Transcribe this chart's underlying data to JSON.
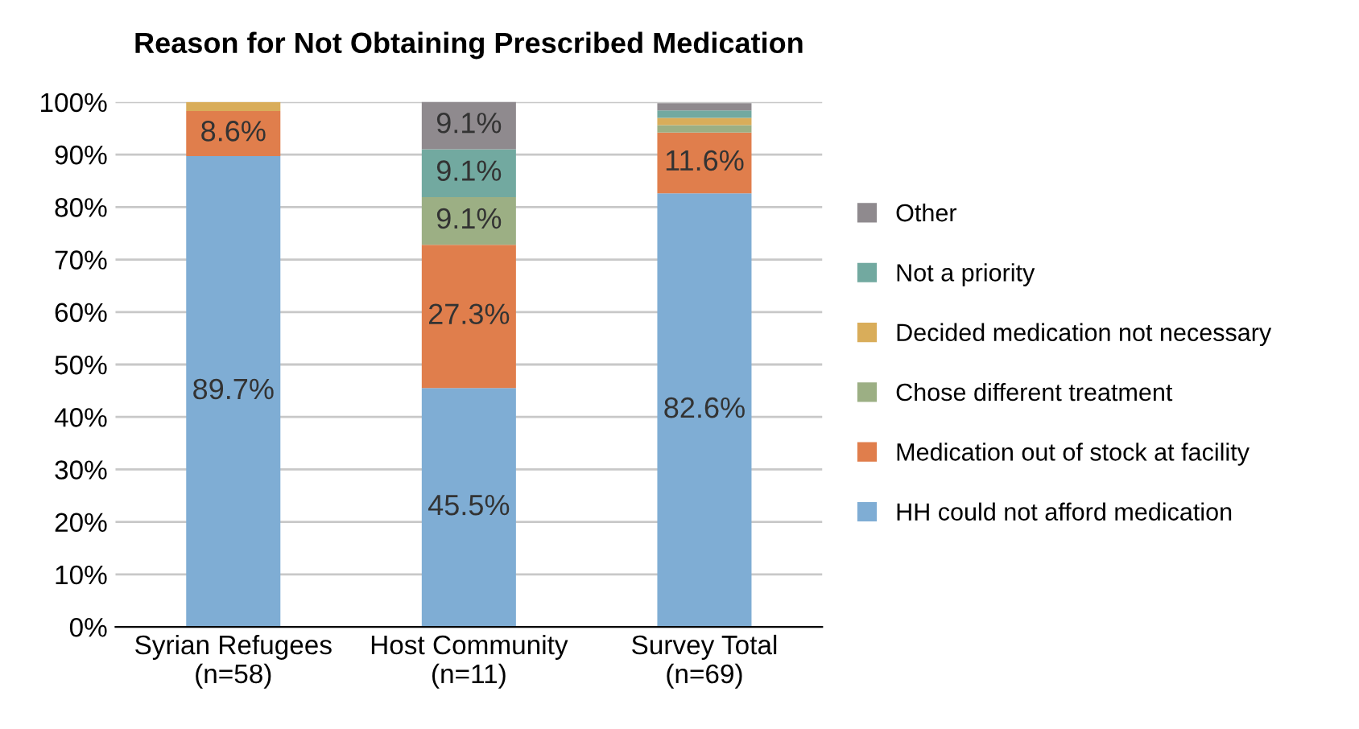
{
  "chart_data": {
    "type": "bar",
    "title": "Reason for Not Obtaining Prescribed Medication",
    "categories": [
      "Syrian Refugees\n(n=58)",
      "Host Community\n(n=11)",
      "Survey Total\n(n=69)"
    ],
    "stacked": true,
    "series": [
      {
        "name": "HH could not afford medication",
        "color": "#7fadd4",
        "values": [
          89.7,
          45.5,
          82.6
        ],
        "value_labels": [
          "89.7%",
          "45.5%",
          "82.6%"
        ]
      },
      {
        "name": "Medication out of stock at facility",
        "color": "#e07e4c",
        "values": [
          8.6,
          27.3,
          11.6
        ],
        "value_labels": [
          "8.6%",
          "27.3%",
          "11.6%"
        ]
      },
      {
        "name": "Chose different treatment",
        "color": "#9caf84",
        "values": [
          null,
          9.1,
          1.4
        ],
        "value_labels": [
          null,
          "9.1%",
          null
        ]
      },
      {
        "name": "Decided medication not necessary",
        "color": "#d9ad5a",
        "values": [
          1.7,
          null,
          1.4
        ],
        "value_labels": [
          null,
          null,
          null
        ]
      },
      {
        "name": "Not a priority",
        "color": "#72a9a0",
        "values": [
          null,
          9.1,
          1.4
        ],
        "value_labels": [
          null,
          "9.1%",
          null
        ]
      },
      {
        "name": "Other",
        "color": "#8f8a8e",
        "values": [
          null,
          9.1,
          1.4
        ],
        "value_labels": [
          null,
          "9.1%",
          null
        ]
      }
    ],
    "ylim": [
      0,
      100
    ],
    "yticks": [
      {
        "value": 0,
        "label": "0%"
      },
      {
        "value": 10,
        "label": "10%"
      },
      {
        "value": 20,
        "label": "20%"
      },
      {
        "value": 30,
        "label": "30%"
      },
      {
        "value": 40,
        "label": "40%"
      },
      {
        "value": 50,
        "label": "50%"
      },
      {
        "value": 60,
        "label": "60%"
      },
      {
        "value": 70,
        "label": "70%"
      },
      {
        "value": 80,
        "label": "80%"
      },
      {
        "value": 90,
        "label": "90%"
      },
      {
        "value": 100,
        "label": "100%"
      }
    ],
    "grid": "y",
    "legend": "right"
  }
}
